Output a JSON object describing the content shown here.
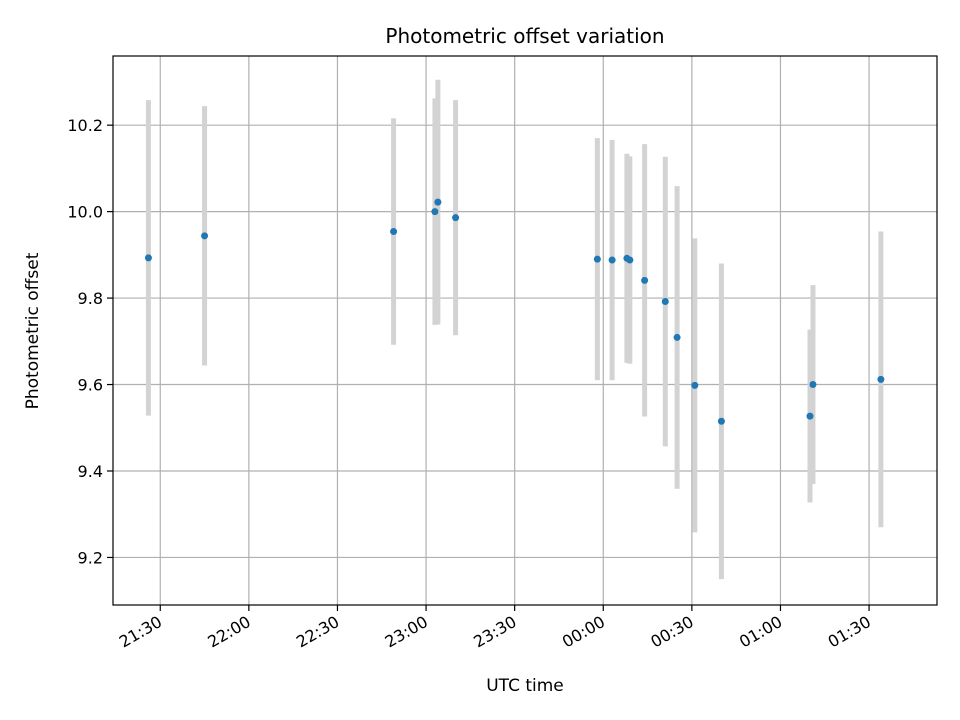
{
  "chart_data": {
    "type": "scatter",
    "title": "Photometric offset variation",
    "xlabel": "UTC time",
    "ylabel": "Photometric offset",
    "grid": true,
    "x_axis_kind": "time",
    "x_ticks": [
      "21:30",
      "22:00",
      "22:30",
      "23:00",
      "23:30",
      "00:00",
      "00:30",
      "01:00",
      "01:30"
    ],
    "xlim": [
      "21:14",
      "01:53"
    ],
    "y_ticks": [
      9.2,
      9.4,
      9.6,
      9.8,
      10.0,
      10.2
    ],
    "ylim": [
      9.09,
      10.36
    ],
    "colors": {
      "points": "#1f77b4",
      "error_bars": "#d3d3d3",
      "grid": "#b0b0b0"
    },
    "series": [
      {
        "points": [
          {
            "x": "21:26",
            "y": 9.893,
            "yerr": 0.365
          },
          {
            "x": "21:45",
            "y": 9.944,
            "yerr": 0.3
          },
          {
            "x": "22:49",
            "y": 9.954,
            "yerr": 0.262
          },
          {
            "x": "23:03",
            "y": 10.0,
            "yerr": 0.262
          },
          {
            "x": "23:04",
            "y": 10.022,
            "yerr": 0.283
          },
          {
            "x": "23:10",
            "y": 9.986,
            "yerr": 0.272
          },
          {
            "x": "23:58",
            "y": 9.89,
            "yerr": 0.28
          },
          {
            "x": "00:03",
            "y": 9.888,
            "yerr": 0.278
          },
          {
            "x": "00:08",
            "y": 9.892,
            "yerr": 0.242
          },
          {
            "x": "00:09",
            "y": 9.888,
            "yerr": 0.24
          },
          {
            "x": "00:14",
            "y": 9.841,
            "yerr": 0.315
          },
          {
            "x": "00:21",
            "y": 9.792,
            "yerr": 0.335
          },
          {
            "x": "00:25",
            "y": 9.709,
            "yerr": 0.35
          },
          {
            "x": "00:31",
            "y": 9.598,
            "yerr": 0.34
          },
          {
            "x": "00:40",
            "y": 9.515,
            "yerr": 0.365
          },
          {
            "x": "01:10",
            "y": 9.527,
            "yerr": 0.2
          },
          {
            "x": "01:11",
            "y": 9.6,
            "yerr": 0.23
          },
          {
            "x": "01:34",
            "y": 9.612,
            "yerr": 0.342
          }
        ]
      }
    ]
  }
}
